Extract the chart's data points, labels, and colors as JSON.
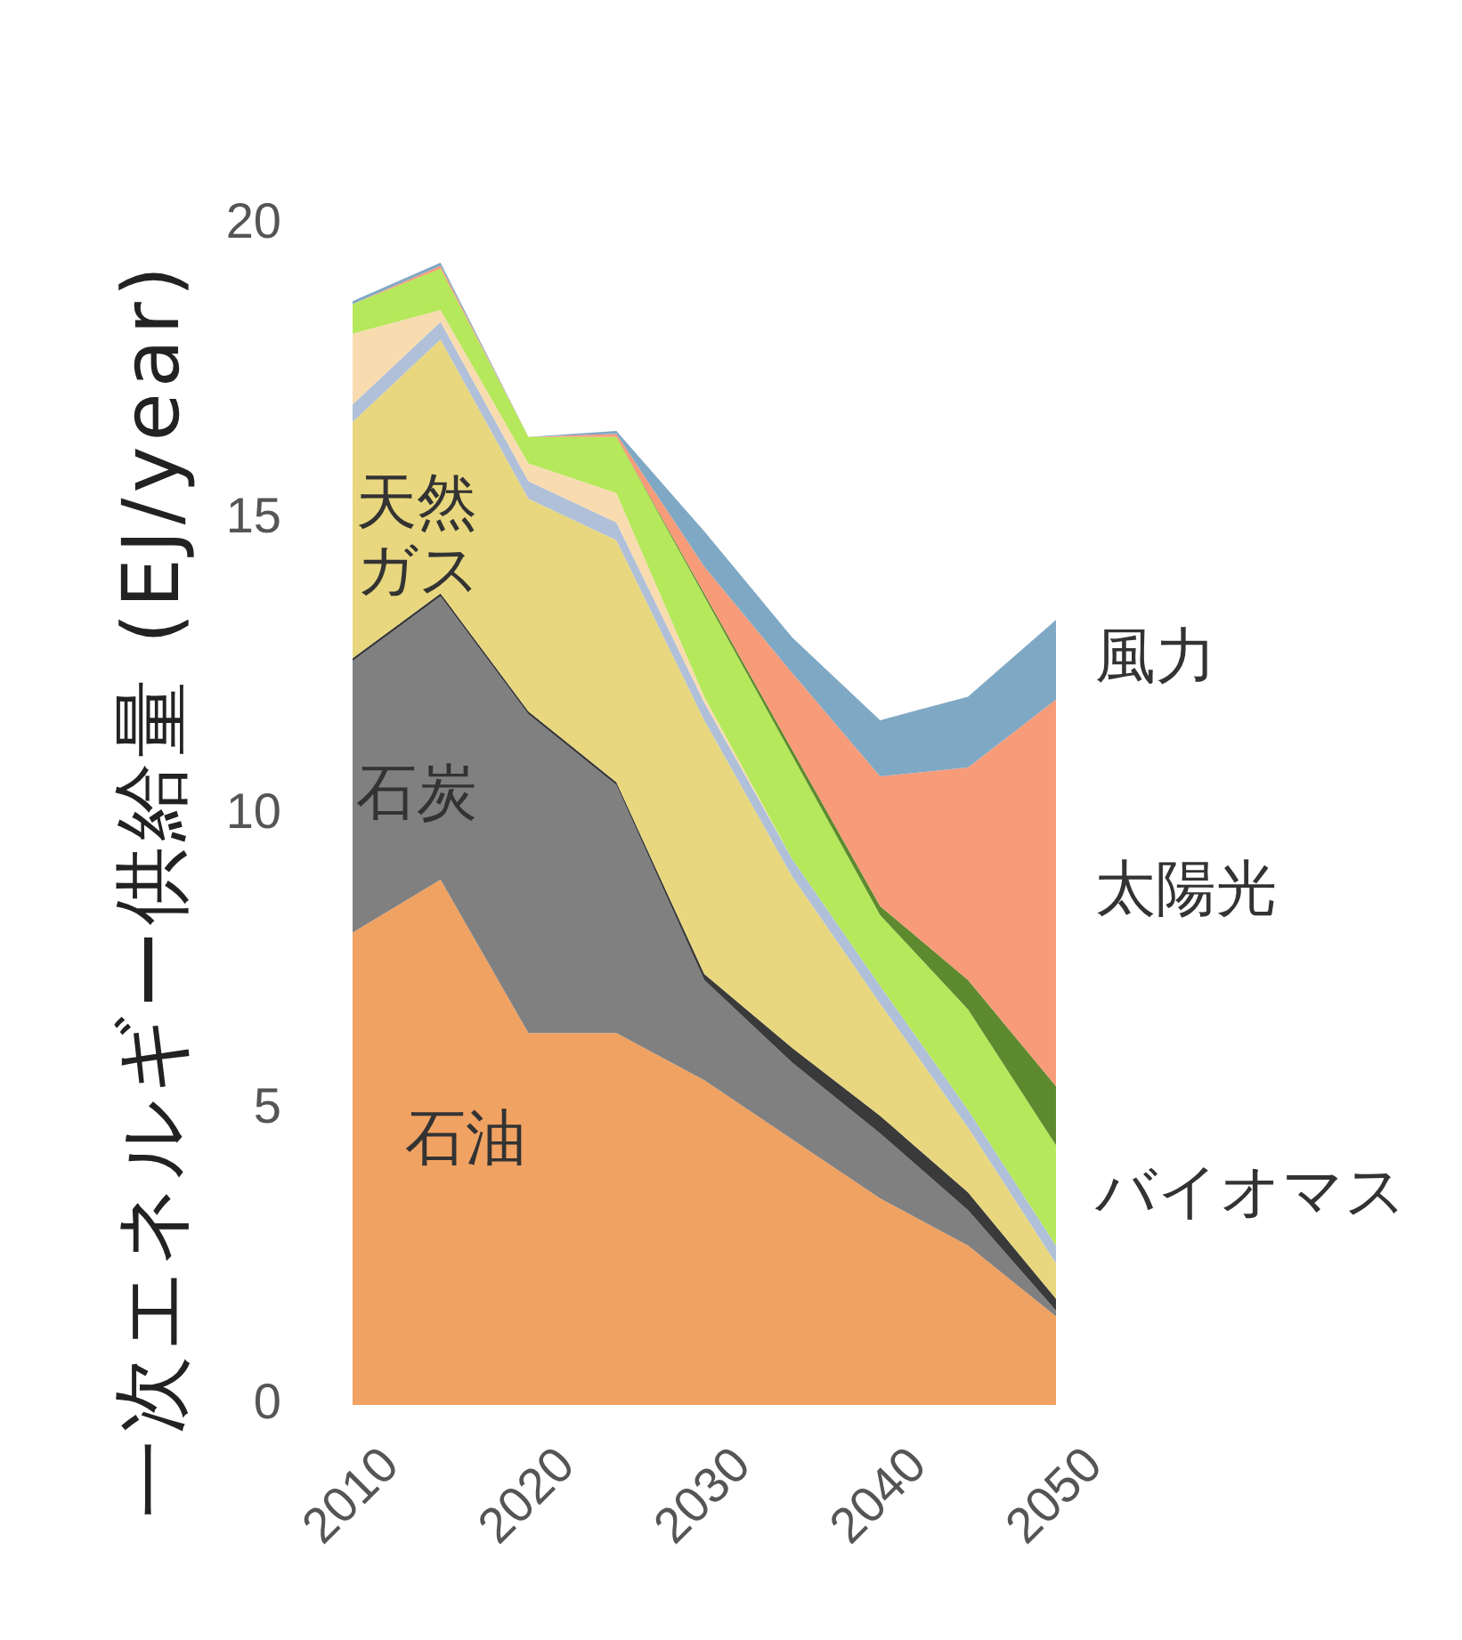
{
  "chart_data": {
    "type": "area",
    "stacked": true,
    "ylabel": "一次エネルギー供給量 (EJ/year)",
    "x": [
      2010,
      2015,
      2020,
      2025,
      2030,
      2035,
      2040,
      2045,
      2050
    ],
    "xlim": [
      2010,
      2050
    ],
    "xticks": [
      2010,
      2020,
      2030,
      2040,
      2050
    ],
    "ylim": [
      0,
      20
    ],
    "yticks": [
      0,
      5,
      10,
      15,
      20
    ],
    "grid": false,
    "legend": false,
    "series": [
      {
        "name": "石油",
        "color": "#f0a262",
        "values": [
          8.0,
          8.9,
          6.3,
          6.3,
          5.5,
          4.5,
          3.5,
          2.7,
          1.5
        ]
      },
      {
        "name": "石炭",
        "color": "#808080",
        "values": [
          4.6,
          4.8,
          5.4,
          4.2,
          1.7,
          1.3,
          1.1,
          0.6,
          0.1
        ]
      },
      {
        "color": "#3a3a3a",
        "values": [
          0.05,
          0.05,
          0.05,
          0.05,
          0.1,
          0.25,
          0.3,
          0.3,
          0.2
        ]
      },
      {
        "name": "天然ガス",
        "color": "#e8d77e",
        "values": [
          4.0,
          4.3,
          3.6,
          4.1,
          4.3,
          2.9,
          1.9,
          1.1,
          0.6
        ]
      },
      {
        "color": "#b0c0d8",
        "values": [
          0.3,
          0.3,
          0.3,
          0.3,
          0.3,
          0.3,
          0.3,
          0.3,
          0.3
        ]
      },
      {
        "color": "#f8dcb0",
        "values": [
          1.2,
          0.2,
          0.3,
          0.5,
          0.1,
          0,
          0,
          0,
          0
        ]
      },
      {
        "name": "バイオマス",
        "color": "#b5e85a",
        "values": [
          0.5,
          0.7,
          0.45,
          0.95,
          1.7,
          1.75,
          1.2,
          1.7,
          1.7
        ]
      },
      {
        "color": "#5d8a2e",
        "values": [
          0,
          0,
          0,
          0,
          0.05,
          0.1,
          0.15,
          0.5,
          1.0
        ]
      },
      {
        "name": "太陽光",
        "color": "#f79b78",
        "values": [
          0,
          0.05,
          0,
          0.05,
          0.45,
          1.3,
          2.2,
          3.6,
          6.55
        ]
      },
      {
        "name": "風力",
        "color": "#7fa8c4",
        "values": [
          0.05,
          0.05,
          0,
          0.05,
          0.6,
          0.6,
          0.95,
          1.2,
          1.35
        ]
      }
    ]
  }
}
